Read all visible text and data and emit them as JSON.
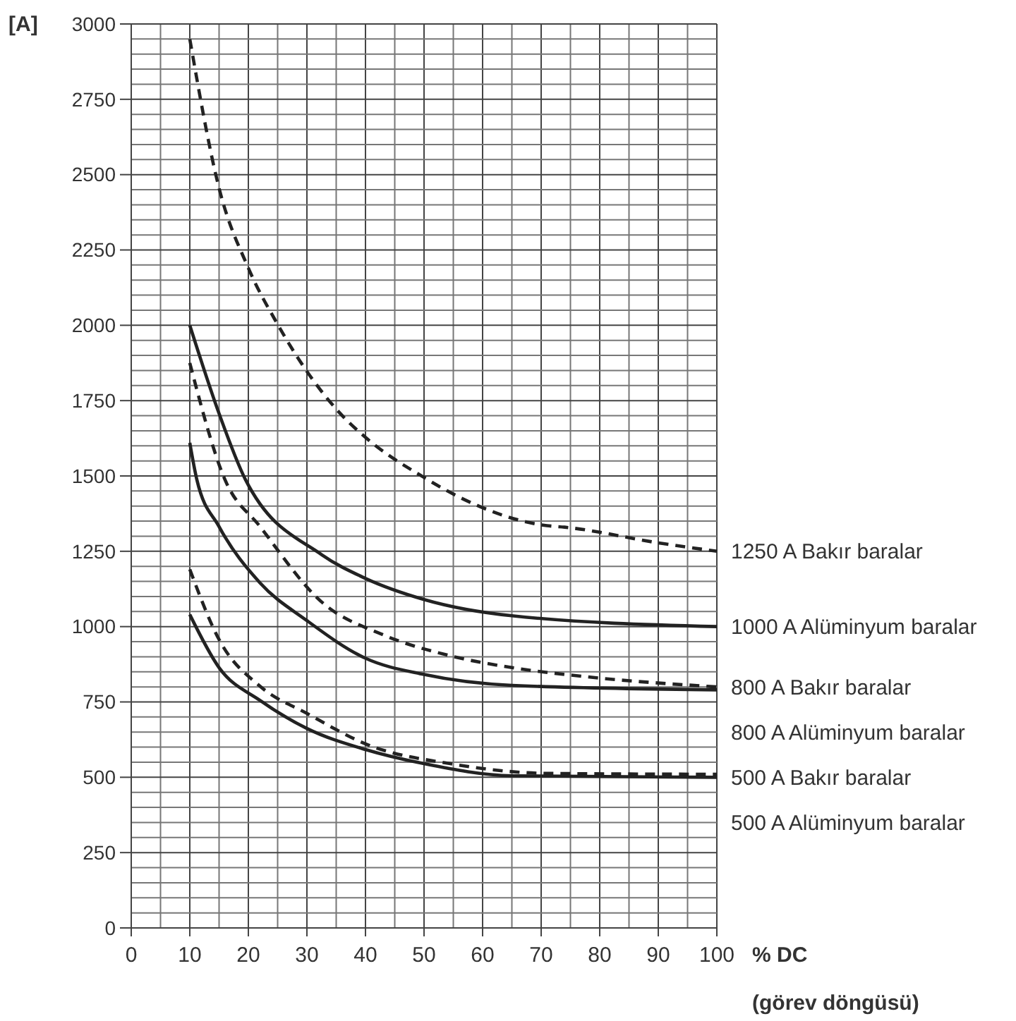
{
  "chart_data": {
    "type": "line",
    "xlabel": "% DC\n(görev döngüsü)",
    "ylabel": "[A]",
    "xlim": [
      0,
      100
    ],
    "xticks": [
      0,
      10,
      20,
      30,
      40,
      50,
      60,
      70,
      80,
      90,
      100
    ],
    "ylim": [
      0,
      3000
    ],
    "yticks": [
      0,
      250,
      500,
      750,
      1000,
      1250,
      1500,
      1750,
      2000,
      2250,
      2500,
      2750,
      3000
    ],
    "grid": true,
    "series": [
      {
        "name": "1250 A Bakır baralar",
        "color": "#222222",
        "line_style": "dashed",
        "x": [
          10,
          15,
          20,
          25,
          30,
          35,
          40,
          50,
          56,
          71,
          74,
          90,
          100
        ],
        "values": [
          2950,
          2455,
          2190,
          2003,
          1847,
          1722,
          1628,
          1495,
          1430,
          1335,
          1330,
          1278,
          1250
        ]
      },
      {
        "name": "1000 A Alüminyum baralar",
        "color": "#222222",
        "line_style": "solid",
        "x": [
          10,
          15,
          19.5,
          32.5,
          40,
          50,
          65,
          100
        ],
        "values": [
          2000,
          1707,
          1488,
          1239,
          1160,
          1090,
          1036,
          1000
        ]
      },
      {
        "name": "800 A Bakır baralar",
        "color": "#222222",
        "line_style": "dashed",
        "x": [
          10,
          16,
          22,
          32.5,
          43,
          54.5,
          65,
          78,
          100
        ],
        "values": [
          1875,
          1488,
          1332,
          1082,
          973,
          903,
          864,
          833,
          800
        ]
      },
      {
        "name": "800 A Alüminyum baralar",
        "color": "#222222",
        "line_style": "solid",
        "x": [
          10,
          11.2,
          15,
          22,
          30,
          40,
          50,
          65,
          100
        ],
        "values": [
          1610,
          1488,
          1332,
          1145,
          1020,
          895,
          841,
          805,
          790
        ]
      },
      {
        "name": "500 A Bakır baralar",
        "color": "#222222",
        "line_style": "dashed",
        "x": [
          10,
          15,
          22,
          30,
          40.5,
          54.5,
          71,
          100
        ],
        "values": [
          1190,
          957,
          802,
          712,
          607,
          545,
          513,
          510
        ]
      },
      {
        "name": "500 A Alüminyum baralar",
        "color": "#222222",
        "line_style": "solid",
        "x": [
          10,
          15,
          22,
          30,
          40,
          50,
          65,
          100
        ],
        "values": [
          1040,
          864,
          755,
          662,
          592,
          545,
          505,
          500
        ]
      }
    ]
  }
}
